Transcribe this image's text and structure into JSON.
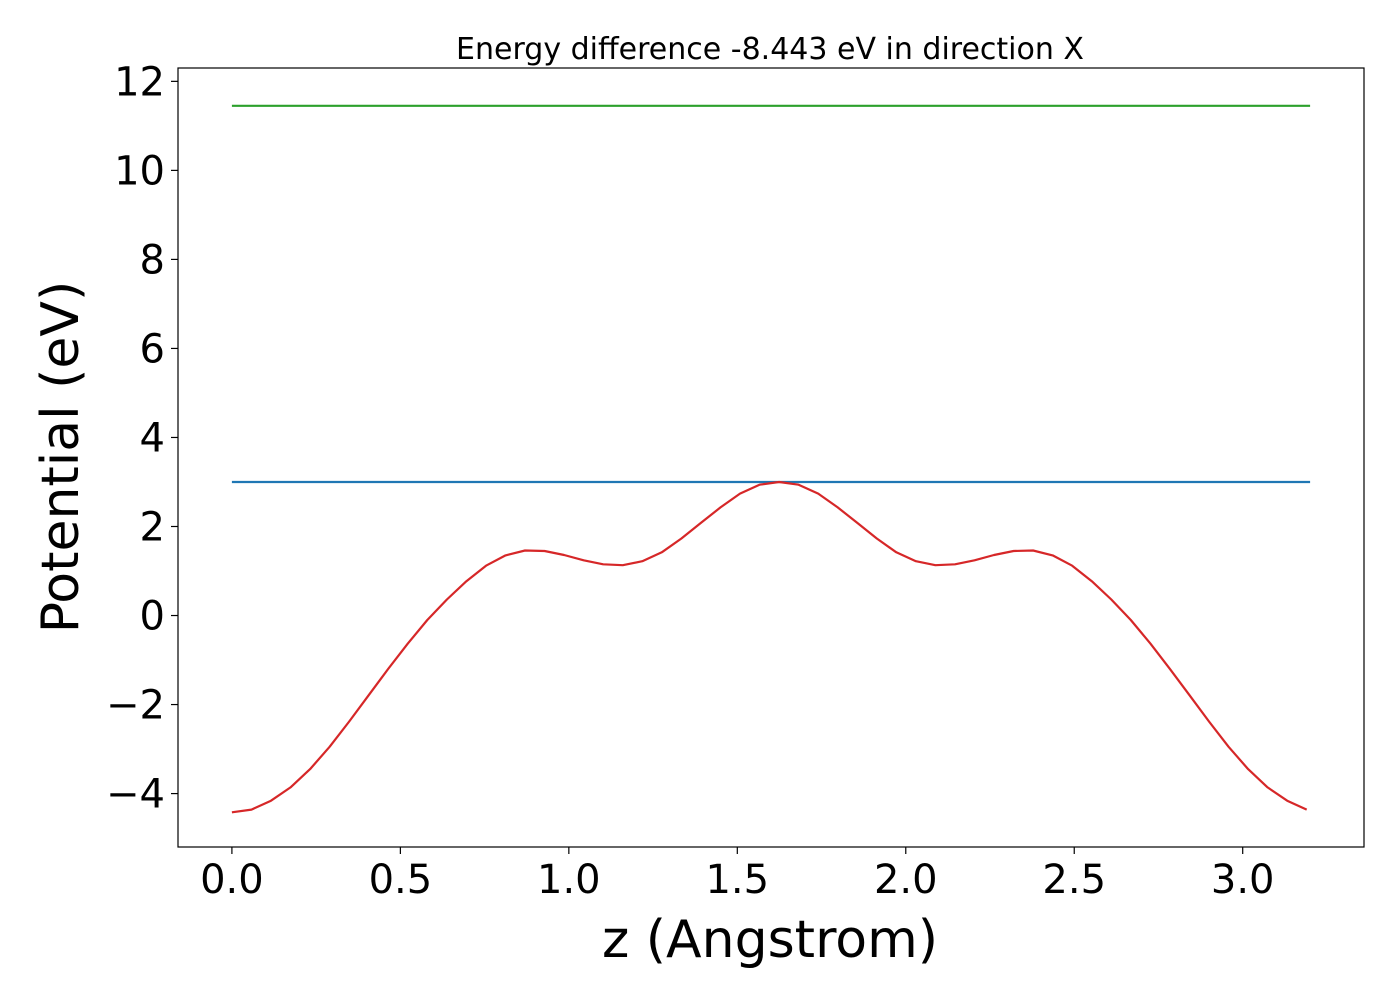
{
  "chart_data": {
    "type": "line",
    "title": "Energy difference -8.443 eV in direction X",
    "xlabel": "z (Angstrom)",
    "ylabel": "Potential (eV)",
    "xlim": [
      -0.16,
      3.36
    ],
    "ylim": [
      -5.2,
      12.3
    ],
    "xticks": [
      0.0,
      0.5,
      1.0,
      1.5,
      2.0,
      2.5,
      3.0
    ],
    "xtick_labels": [
      "0.0",
      "0.5",
      "1.0",
      "1.5",
      "2.0",
      "2.5",
      "3.0"
    ],
    "yticks": [
      -4,
      -2,
      0,
      2,
      4,
      6,
      8,
      10,
      12
    ],
    "ytick_labels": [
      "−4",
      "−2",
      "0",
      "2",
      "4",
      "6",
      "8",
      "10",
      "12"
    ],
    "grid": false,
    "series": [
      {
        "color": "#2ca02c",
        "x": [
          0.0,
          3.2
        ],
        "y": [
          11.45,
          11.45
        ]
      },
      {
        "color": "#1f77b4",
        "x": [
          0.0,
          3.2
        ],
        "y": [
          3.0,
          3.0
        ]
      },
      {
        "color": "#d62728",
        "x": [
          0.0,
          0.058,
          0.116,
          0.174,
          0.232,
          0.29,
          0.348,
          0.406,
          0.464,
          0.522,
          0.58,
          0.638,
          0.696,
          0.754,
          0.812,
          0.87,
          0.928,
          0.986,
          1.044,
          1.102,
          1.16,
          1.218,
          1.276,
          1.334,
          1.392,
          1.45,
          1.508,
          1.566,
          1.624,
          1.682,
          1.74,
          1.798,
          1.856,
          1.914,
          1.972,
          2.03,
          2.088,
          2.146,
          2.204,
          2.262,
          2.32,
          2.378,
          2.436,
          2.494,
          2.552,
          2.61,
          2.668,
          2.726,
          2.784,
          2.842,
          2.9,
          2.958,
          3.016,
          3.074,
          3.132,
          3.19
        ],
        "y": [
          -4.42,
          -4.36,
          -4.16,
          -3.86,
          -3.45,
          -2.95,
          -2.38,
          -1.79,
          -1.2,
          -0.63,
          -0.1,
          0.36,
          0.77,
          1.12,
          1.35,
          1.46,
          1.45,
          1.36,
          1.24,
          1.15,
          1.13,
          1.22,
          1.42,
          1.73,
          2.08,
          2.43,
          2.74,
          2.94,
          3.0,
          2.94,
          2.74,
          2.43,
          2.08,
          1.73,
          1.42,
          1.22,
          1.13,
          1.15,
          1.24,
          1.36,
          1.45,
          1.46,
          1.35,
          1.12,
          0.77,
          0.36,
          -0.1,
          -0.63,
          -1.2,
          -1.79,
          -2.38,
          -2.95,
          -3.45,
          -3.86,
          -4.16,
          -4.36
        ]
      }
    ]
  }
}
